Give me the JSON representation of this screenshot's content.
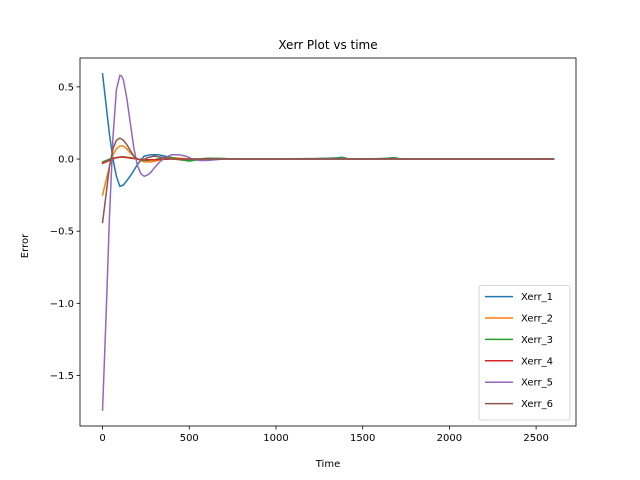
{
  "chart_data": {
    "type": "line",
    "title": "Xerr Plot vs time",
    "xlabel": "Time",
    "ylabel": "Error",
    "xlim": [
      -130,
      2730
    ],
    "ylim": [
      -1.85,
      0.7
    ],
    "xticks": [
      0,
      500,
      1000,
      1500,
      2000,
      2500
    ],
    "yticks": [
      -1.5,
      -1.0,
      -0.5,
      0.0,
      0.5
    ],
    "ytick_labels": [
      "−1.5",
      "−1.0",
      "−0.5",
      "0.0",
      "0.5"
    ],
    "grid": false,
    "legend_position": "lower-right",
    "series": [
      {
        "name": "Xerr_1",
        "color": "#1f77b4",
        "x": [
          0,
          20,
          40,
          60,
          80,
          100,
          120,
          140,
          170,
          200,
          240,
          280,
          320,
          360,
          400,
          450,
          500,
          550,
          600,
          700,
          800,
          1000,
          1200,
          1350,
          1380,
          1420,
          1500,
          1600,
          1680,
          1720,
          1800,
          2000,
          2200,
          2400,
          2600
        ],
        "y": [
          0.59,
          0.38,
          0.17,
          0.0,
          -0.12,
          -0.19,
          -0.18,
          -0.15,
          -0.1,
          -0.04,
          0.02,
          0.03,
          0.03,
          0.02,
          0.01,
          -0.005,
          -0.01,
          -0.005,
          0.005,
          0.003,
          0.0,
          0.0,
          0.0,
          0.008,
          0.012,
          0.0,
          0.0,
          0.0,
          0.01,
          0.0,
          0.0,
          0.0,
          0.0,
          0.0,
          0.0
        ]
      },
      {
        "name": "Xerr_2",
        "color": "#ff7f0e",
        "x": [
          0,
          20,
          40,
          60,
          80,
          100,
          120,
          140,
          170,
          200,
          240,
          280,
          320,
          360,
          420,
          500,
          600,
          800,
          1000,
          1500,
          2000,
          2600
        ],
        "y": [
          -0.25,
          -0.15,
          -0.05,
          0.03,
          0.07,
          0.09,
          0.09,
          0.07,
          0.03,
          0.0,
          -0.02,
          -0.02,
          -0.01,
          0.005,
          0.008,
          0.0,
          0.0,
          0.0,
          0.0,
          0.0,
          0.0,
          0.0
        ]
      },
      {
        "name": "Xerr_3",
        "color": "#2ca02c",
        "x": [
          0,
          40,
          80,
          120,
          160,
          200,
          250,
          300,
          350,
          400,
          450,
          500,
          550,
          600,
          700,
          800,
          1000,
          1350,
          1380,
          1420,
          1500,
          1650,
          1680,
          1720,
          2000,
          2600
        ],
        "y": [
          -0.02,
          0.0,
          0.01,
          0.015,
          0.01,
          0.0,
          -0.01,
          -0.005,
          0.01,
          0.01,
          -0.005,
          -0.015,
          -0.005,
          0.005,
          0.003,
          0.0,
          0.0,
          0.005,
          0.01,
          0.0,
          0.0,
          0.005,
          0.01,
          0.0,
          0.0,
          0.0
        ]
      },
      {
        "name": "Xerr_4",
        "color": "#d62728",
        "x": [
          0,
          40,
          80,
          110,
          150,
          200,
          250,
          300,
          400,
          500,
          600,
          1000,
          1500,
          2000,
          2600
        ],
        "y": [
          -0.03,
          -0.01,
          0.01,
          0.015,
          0.008,
          0.0,
          -0.005,
          -0.005,
          0.0,
          0.0,
          0.0,
          0.0,
          0.0,
          0.0,
          0.0
        ]
      },
      {
        "name": "Xerr_5",
        "color": "#9467bd",
        "x": [
          0,
          20,
          40,
          60,
          80,
          100,
          110,
          120,
          140,
          160,
          180,
          200,
          220,
          240,
          260,
          280,
          300,
          330,
          360,
          400,
          440,
          480,
          520,
          560,
          600,
          650,
          700,
          800,
          1000,
          1500,
          2000,
          2600
        ],
        "y": [
          -1.74,
          -1.1,
          -0.4,
          0.15,
          0.48,
          0.58,
          0.575,
          0.55,
          0.42,
          0.25,
          0.08,
          -0.04,
          -0.1,
          -0.12,
          -0.11,
          -0.09,
          -0.06,
          -0.02,
          0.01,
          0.03,
          0.03,
          0.02,
          0.0,
          -0.01,
          -0.01,
          -0.005,
          0.0,
          0.0,
          0.0,
          0.0,
          0.0,
          0.0
        ]
      },
      {
        "name": "Xerr_6",
        "color": "#8c564b",
        "x": [
          0,
          20,
          40,
          60,
          80,
          100,
          120,
          140,
          160,
          180,
          200,
          230,
          260,
          300,
          350,
          400,
          450,
          500,
          600,
          800,
          1000,
          1500,
          2000,
          2600
        ],
        "y": [
          -0.44,
          -0.25,
          -0.05,
          0.07,
          0.13,
          0.145,
          0.13,
          0.1,
          0.06,
          0.02,
          0.0,
          -0.01,
          0.01,
          0.02,
          0.01,
          0.0,
          -0.005,
          0.0,
          0.0,
          0.0,
          0.0,
          0.0,
          0.0,
          0.0
        ]
      }
    ]
  }
}
